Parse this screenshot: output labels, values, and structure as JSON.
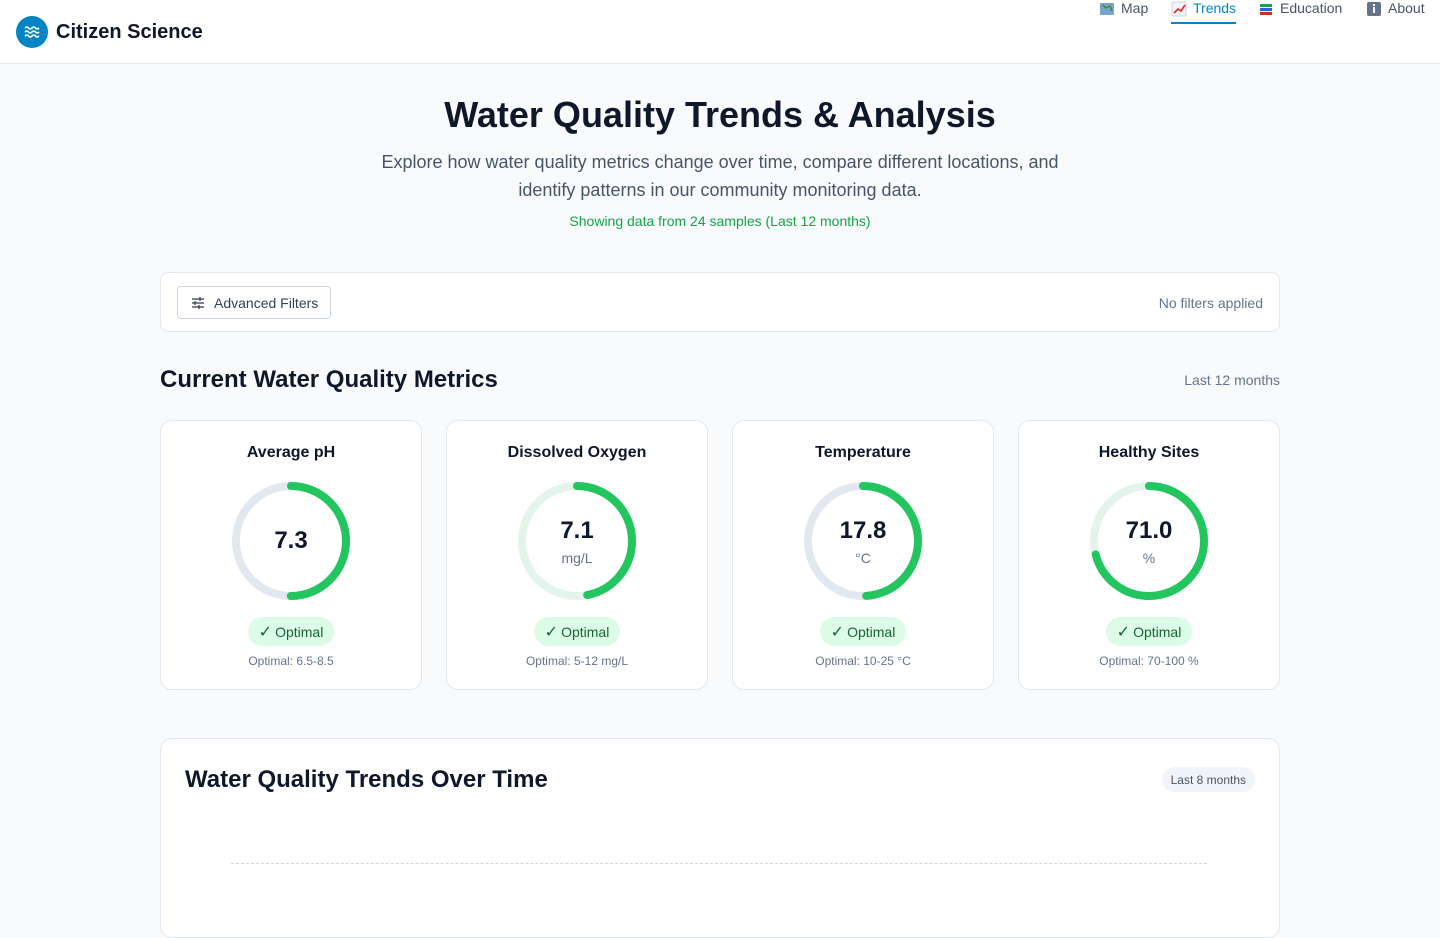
{
  "header": {
    "brand": "Citizen Science",
    "nav": [
      {
        "label": "Map",
        "icon": "map-icon",
        "active": false
      },
      {
        "label": "Trends",
        "icon": "chart-icon",
        "active": true
      },
      {
        "label": "Education",
        "icon": "books-icon",
        "active": false
      },
      {
        "label": "About",
        "icon": "info-icon",
        "active": false
      }
    ]
  },
  "hero": {
    "title": "Water Quality Trends & Analysis",
    "subtitle": "Explore how water quality metrics change over time, compare different locations, and identify patterns in our community monitoring data.",
    "note": "Showing data from 24 samples (Last 12 months)"
  },
  "filters": {
    "button_label": "Advanced Filters",
    "status": "No filters applied"
  },
  "metrics": {
    "title": "Current Water Quality Metrics",
    "range": "Last 12 months",
    "cards": [
      {
        "title": "Average pH",
        "value": "7.3",
        "unit": "",
        "fraction": 0.5,
        "status": "Optimal",
        "range": "Optimal: 6.5-8.5"
      },
      {
        "title": "Dissolved Oxygen",
        "value": "7.1",
        "unit": "mg/L",
        "fraction": 0.47,
        "status": "Optimal",
        "range": "Optimal: 5-12 mg/L"
      },
      {
        "title": "Temperature",
        "value": "17.8",
        "unit": "°C",
        "fraction": 0.49,
        "status": "Optimal",
        "range": "Optimal: 10-25 °C"
      },
      {
        "title": "Healthy Sites",
        "value": "71.0",
        "unit": "%",
        "fraction": 0.71,
        "status": "Optimal",
        "range": "Optimal: 70-100 %"
      }
    ]
  },
  "trends": {
    "title": "Water Quality Trends Over Time",
    "range": "Last 8 months"
  },
  "colors": {
    "accent": "#0284c7",
    "good": "#22c55e",
    "track_grey": "#e2e8f0",
    "track_green": "#e3f5ea"
  }
}
